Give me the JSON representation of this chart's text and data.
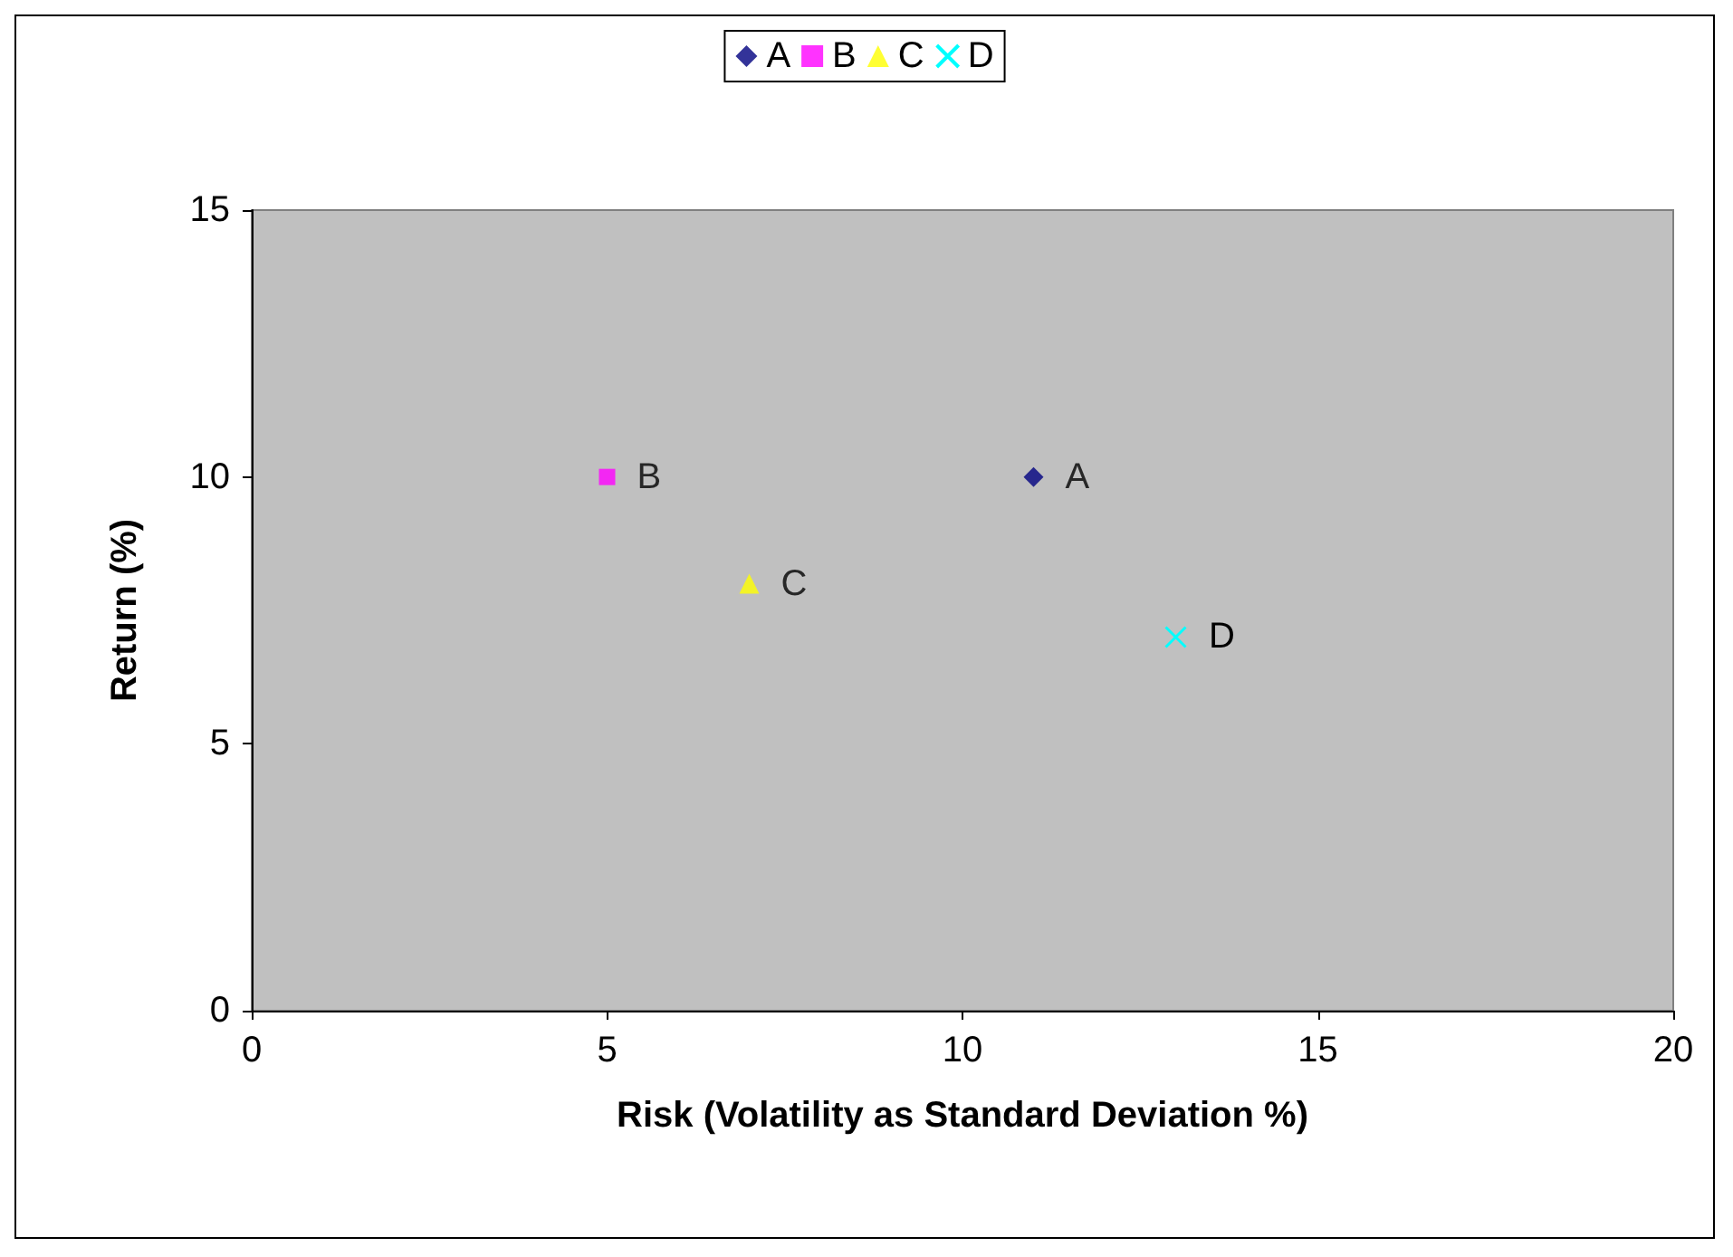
{
  "chart_data": {
    "type": "scatter",
    "xlabel": "Risk (Volatility as Standard Deviation %)",
    "ylabel": "Return (%)",
    "xlim": [
      0,
      20
    ],
    "xticks": [
      0,
      5,
      10,
      15,
      20
    ],
    "ylim": [
      0,
      15
    ],
    "yticks": [
      0,
      5,
      10,
      15
    ],
    "grid": false,
    "legend": "top",
    "series": [
      {
        "name": "A",
        "color": "#000080",
        "marker": "diamond",
        "x": [
          11
        ],
        "values": [
          10
        ]
      },
      {
        "name": "B",
        "color": "#ff00ff",
        "marker": "square",
        "x": [
          5
        ],
        "values": [
          10
        ]
      },
      {
        "name": "C",
        "color": "#ffff00",
        "marker": "triangle",
        "x": [
          7
        ],
        "values": [
          8
        ]
      },
      {
        "name": "D",
        "color": "#00ffff",
        "marker": "cross",
        "x": [
          13
        ],
        "values": [
          7
        ]
      }
    ]
  }
}
